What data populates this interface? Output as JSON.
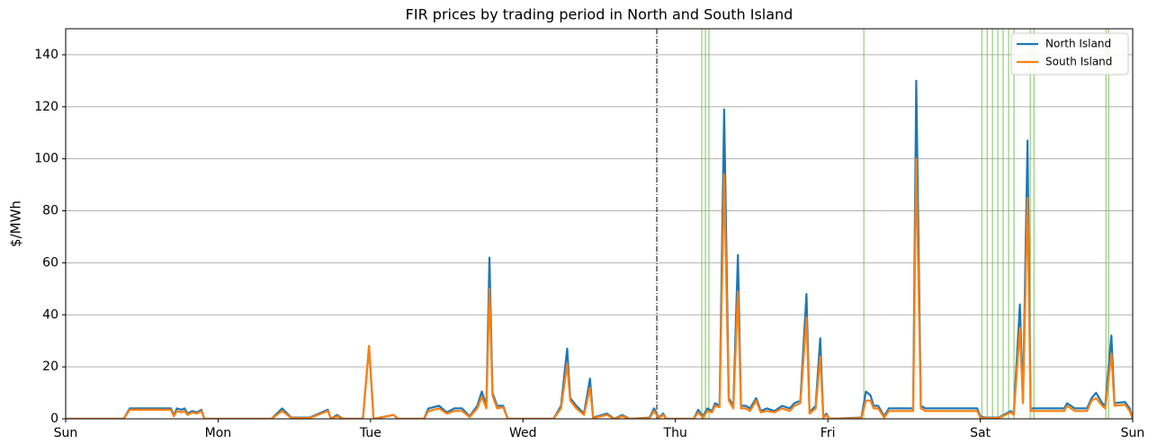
{
  "chart_data": {
    "type": "line",
    "title": "FIR prices by trading period in North and South Island",
    "y_label": "$/MWh",
    "x": [
      0,
      0.38,
      0.42,
      0.69,
      0.71,
      0.73,
      0.76,
      0.78,
      0.8,
      0.83,
      0.86,
      0.89,
      0.91,
      1.35,
      1.42,
      1.48,
      1.6,
      1.72,
      1.74,
      1.78,
      1.82,
      1.95,
      1.99,
      2.02,
      2.15,
      2.18,
      2.35,
      2.38,
      2.45,
      2.5,
      2.55,
      2.6,
      2.65,
      2.7,
      2.73,
      2.76,
      2.78,
      2.8,
      2.83,
      2.87,
      2.9,
      3.2,
      3.25,
      3.29,
      3.31,
      3.35,
      3.4,
      3.44,
      3.46,
      3.55,
      3.6,
      3.65,
      3.7,
      3.83,
      3.86,
      3.89,
      3.92,
      3.94,
      4.12,
      4.15,
      4.18,
      4.21,
      4.24,
      4.26,
      4.29,
      4.32,
      4.35,
      4.38,
      4.41,
      4.43,
      4.46,
      4.49,
      4.53,
      4.56,
      4.6,
      4.65,
      4.7,
      4.75,
      4.78,
      4.82,
      4.86,
      4.88,
      4.92,
      4.95,
      4.97,
      4.99,
      5.01,
      5.22,
      5.25,
      5.28,
      5.3,
      5.33,
      5.37,
      5.4,
      5.54,
      5.56,
      5.58,
      5.61,
      5.64,
      5.98,
      6,
      6.03,
      6.12,
      6.2,
      6.22,
      6.26,
      6.28,
      6.31,
      6.33,
      6.55,
      6.57,
      6.62,
      6.7,
      6.73,
      6.76,
      6.8,
      6.82,
      6.86,
      6.88,
      6.95,
      6.98,
      7
    ],
    "series": [
      {
        "name": "North Island",
        "color": "#1f77b4",
        "values": [
          0,
          0,
          4,
          4,
          1.5,
          4,
          3.5,
          4,
          2,
          3,
          2.5,
          3.5,
          0,
          0,
          4,
          0.5,
          0.5,
          3.5,
          0,
          1.5,
          0,
          0,
          28,
          0,
          1.5,
          0,
          0,
          4,
          5,
          2.5,
          4,
          4,
          1,
          5,
          10.5,
          5,
          62,
          10,
          5,
          5,
          0,
          0,
          5,
          27,
          8,
          5,
          2,
          15.5,
          0.5,
          2,
          0,
          1.5,
          0,
          0.5,
          4,
          0.5,
          2,
          0,
          0,
          3.5,
          1,
          4,
          3,
          6,
          5,
          119,
          8,
          5,
          63,
          5,
          5,
          4,
          8,
          3,
          4,
          3,
          5,
          4,
          6,
          7,
          48,
          2.5,
          5,
          31,
          0.5,
          2,
          0,
          0.5,
          10.5,
          9,
          5,
          5,
          1,
          4,
          4,
          4,
          130,
          5,
          4,
          4,
          1,
          0.5,
          0.5,
          3,
          2,
          44,
          7,
          107,
          4,
          4,
          6,
          4,
          4,
          8,
          10,
          6,
          5,
          32,
          6,
          6.5,
          4,
          0
        ]
      },
      {
        "name": "South Island",
        "color": "#ff7f0e",
        "values": [
          0,
          0,
          3.5,
          3.5,
          1,
          3,
          2.5,
          3,
          1.5,
          2.5,
          2,
          3,
          0,
          0,
          3,
          0.3,
          0.3,
          3,
          0,
          1,
          0,
          0,
          28,
          0,
          1.5,
          0,
          0,
          3,
          4,
          2,
          3,
          3,
          0.7,
          4,
          8.5,
          4,
          50,
          9,
          4,
          4.5,
          0,
          0,
          4,
          21,
          7,
          4,
          1.5,
          12,
          0.3,
          1.5,
          0,
          1,
          0,
          0.3,
          3,
          0.3,
          1.5,
          0,
          0,
          2.5,
          0.5,
          3,
          2.5,
          5,
          4.5,
          94,
          7,
          4,
          49,
          4,
          4,
          3,
          7,
          2.5,
          3,
          2.5,
          4,
          3,
          5,
          6,
          39,
          2,
          4,
          24,
          0.3,
          1.5,
          0,
          0.3,
          7,
          7,
          4,
          4,
          0.5,
          3,
          3,
          3,
          100,
          4,
          3,
          3,
          0.5,
          0.3,
          0.3,
          2.5,
          1.5,
          35,
          6,
          85,
          3,
          3,
          5,
          3,
          3,
          7,
          8,
          5,
          4,
          25,
          5,
          5.5,
          3,
          0
        ]
      }
    ],
    "xlim": [
      0,
      7
    ],
    "xticks": [
      {
        "value": 0,
        "label": "Sun"
      },
      {
        "value": 1,
        "label": "Mon"
      },
      {
        "value": 2,
        "label": "Tue"
      },
      {
        "value": 3,
        "label": "Wed"
      },
      {
        "value": 4,
        "label": "Thu"
      },
      {
        "value": 5,
        "label": "Fri"
      },
      {
        "value": 6,
        "label": "Sat"
      },
      {
        "value": 7,
        "label": "Sun"
      }
    ],
    "ylim": [
      0,
      150
    ],
    "yticks": [
      0,
      20,
      40,
      60,
      80,
      100,
      120,
      140
    ],
    "grid": true,
    "legend": "upper right",
    "vlines": {
      "color": "#7cc35a",
      "x": [
        4.173,
        4.197,
        4.22,
        5.236,
        6.01,
        6.045,
        6.08,
        6.115,
        6.15,
        6.186,
        6.221,
        6.328,
        6.352,
        6.824,
        6.842
      ]
    },
    "divider": {
      "color": "#000000",
      "x": 3.878
    }
  }
}
